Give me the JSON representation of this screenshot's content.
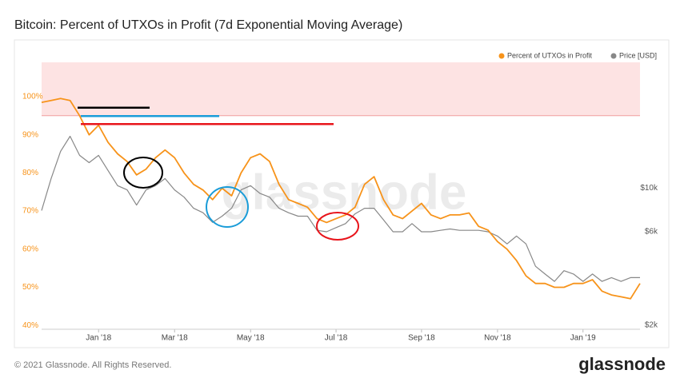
{
  "chart_data": {
    "type": "line",
    "title": "Bitcoin: Percent of UTXOs in Profit (7d Exponential Moving Average)",
    "watermark": "glassnode",
    "footer": "© 2021 Glassnode. All Rights Reserved.",
    "logo": "glassnode",
    "legend": "top-right",
    "categories": [
      null,
      null,
      null,
      null,
      null,
      null,
      "Jan '18",
      null,
      null,
      null,
      null,
      null,
      null,
      null,
      "Mar '18",
      null,
      null,
      null,
      null,
      null,
      null,
      null,
      "May '18",
      null,
      null,
      null,
      null,
      null,
      null,
      null,
      null,
      "Jul '18",
      null,
      null,
      null,
      null,
      null,
      null,
      null,
      null,
      "Sep '18",
      null,
      null,
      null,
      null,
      null,
      null,
      null,
      "Nov '18",
      null,
      null,
      null,
      null,
      null,
      null,
      null,
      null,
      "Jan '19",
      null,
      null,
      null,
      null,
      null,
      null
    ],
    "series": [
      {
        "name": "Percent of UTXOs in Profit",
        "color": "#f7931a",
        "axis": "y",
        "values": [
          98.5,
          99,
          99.5,
          99,
          95,
          90,
          92.5,
          88,
          85,
          83,
          79.5,
          81,
          84,
          86,
          84,
          80,
          77,
          75.5,
          73,
          76,
          74,
          80,
          84,
          85,
          83,
          77,
          73,
          72,
          71,
          68,
          67,
          68,
          69,
          71,
          77,
          79,
          73,
          69,
          68,
          70,
          72,
          69,
          68,
          69,
          69,
          69.5,
          66,
          65,
          62,
          60,
          57,
          53,
          51,
          51,
          50,
          50,
          51,
          51,
          52,
          49,
          48,
          47.5,
          47,
          51
        ]
      },
      {
        "name": "Price [USD]",
        "color": "#888888",
        "axis": "y2",
        "values": [
          7700,
          11200,
          15400,
          18400,
          14700,
          13500,
          14700,
          12300,
          10300,
          9800,
          8200,
          9800,
          10300,
          11200,
          9800,
          9000,
          7900,
          7500,
          6700,
          7200,
          7900,
          9800,
          10300,
          9400,
          9000,
          7900,
          7500,
          7200,
          7200,
          6100,
          6000,
          6300,
          6600,
          7400,
          7900,
          7900,
          6900,
          6000,
          6000,
          6600,
          6000,
          6000,
          6100,
          6200,
          6100,
          6100,
          6100,
          6000,
          5700,
          5200,
          5700,
          5200,
          4000,
          3650,
          3350,
          3800,
          3650,
          3350,
          3650,
          3350,
          3500,
          3350,
          3500,
          3500
        ]
      }
    ],
    "ylim": [
      39,
      109
    ],
    "yticks": [
      {
        "value": 40,
        "label": "40%"
      },
      {
        "value": 50,
        "label": "50%"
      },
      {
        "value": 60,
        "label": "60%"
      },
      {
        "value": 70,
        "label": "70%"
      },
      {
        "value": 80,
        "label": "80%"
      },
      {
        "value": 90,
        "label": "90%"
      },
      {
        "value": 100,
        "label": "100%"
      }
    ],
    "y2lim": [
      1910,
      43800
    ],
    "y2log": true,
    "y2ticks": [
      {
        "value": 2000,
        "label": "$2k"
      },
      {
        "value": 6000,
        "label": "$6k"
      },
      {
        "value": 10000,
        "label": "$10k"
      }
    ],
    "shaded_range": {
      "from": 95,
      "to": 109,
      "color": "#fde3e3"
    },
    "reference_lines": [
      {
        "value": 97.1,
        "color": "#000000"
      },
      {
        "value": 94.9,
        "color": "#1a9cd8"
      },
      {
        "value": 92.8,
        "color": "#e8141b"
      }
    ]
  }
}
